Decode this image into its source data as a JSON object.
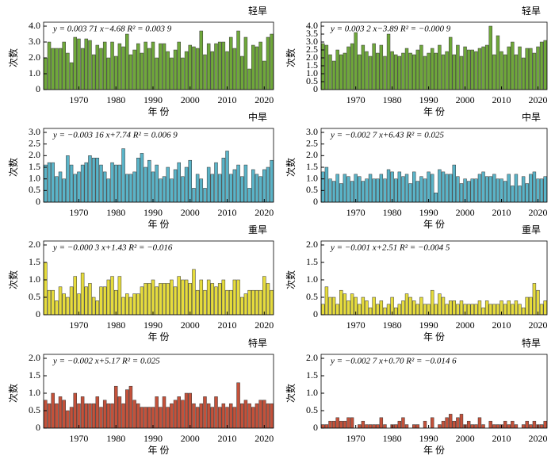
{
  "chart_data": [
    {
      "type": "bar",
      "title": "轻旱",
      "annotation": "y = 0.003 71 x−4.68 R² = 0.003 9",
      "ylabel": "次数",
      "xlabel": "年 份",
      "color": "#6fa83a",
      "x": [
        1961,
        1962,
        1963,
        1964,
        1965,
        1966,
        1967,
        1968,
        1969,
        1970,
        1971,
        1972,
        1973,
        1974,
        1975,
        1976,
        1977,
        1978,
        1979,
        1980,
        1981,
        1982,
        1983,
        1984,
        1985,
        1986,
        1987,
        1988,
        1989,
        1990,
        1991,
        1992,
        1993,
        1994,
        1995,
        1996,
        1997,
        1998,
        1999,
        2000,
        2001,
        2002,
        2003,
        2004,
        2005,
        2006,
        2007,
        2008,
        2009,
        2010,
        2011,
        2012,
        2013,
        2014,
        2015,
        2016,
        2017,
        2018,
        2019,
        2020,
        2021,
        2022
      ],
      "values": [
        2.0,
        3.0,
        2.6,
        2.6,
        2.6,
        3.0,
        2.3,
        1.7,
        3.3,
        3.2,
        2.6,
        3.2,
        3.1,
        2.2,
        2.8,
        2.6,
        3.0,
        2.0,
        3.0,
        2.1,
        2.9,
        2.7,
        3.5,
        2.2,
        2.5,
        2.9,
        2.3,
        3.0,
        2.6,
        3.0,
        2.0,
        2.9,
        2.9,
        2.4,
        2.0,
        2.5,
        3.0,
        2.0,
        2.4,
        2.8,
        2.7,
        2.6,
        3.7,
        2.2,
        2.9,
        2.4,
        2.9,
        3.0,
        3.0,
        2.4,
        3.3,
        2.6,
        3.7,
        2.1,
        3.3,
        1.3,
        2.8,
        2.7,
        3.0,
        1.8,
        3.3,
        3.5
      ],
      "xlim": [
        1960.5,
        2022.5
      ],
      "xticks": [
        1970,
        1980,
        1990,
        2000,
        2010,
        2020
      ],
      "ylim": [
        0,
        4
      ],
      "yticks": [
        0,
        {
          "value": 1,
          "label": "1.0"
        },
        {
          "value": 2,
          "label": "2.0"
        },
        {
          "value": 3,
          "label": "3.0"
        },
        {
          "value": 4,
          "label": "4.0"
        }
      ]
    },
    {
      "type": "bar",
      "title": "轻旱",
      "annotation": "y = 0.003 2 x−3.89 R² = −0.000 9",
      "ylabel": "次数",
      "xlabel": "年 份",
      "color": "#6fa83a",
      "x": [
        1961,
        1962,
        1963,
        1964,
        1965,
        1966,
        1967,
        1968,
        1969,
        1970,
        1971,
        1972,
        1973,
        1974,
        1975,
        1976,
        1977,
        1978,
        1979,
        1980,
        1981,
        1982,
        1983,
        1984,
        1985,
        1986,
        1987,
        1988,
        1989,
        1990,
        1991,
        1992,
        1993,
        1994,
        1995,
        1996,
        1997,
        1998,
        1999,
        2000,
        2001,
        2002,
        2003,
        2004,
        2005,
        2006,
        2007,
        2008,
        2009,
        2010,
        2011,
        2012,
        2013,
        2014,
        2015,
        2016,
        2017,
        2018,
        2019,
        2020,
        2021,
        2022
      ],
      "values": [
        2.9,
        2.8,
        2.2,
        1.8,
        2.5,
        2.2,
        2.3,
        2.7,
        2.9,
        3.6,
        2.2,
        2.8,
        2.4,
        2.1,
        2.9,
        2.3,
        2.8,
        2.1,
        3.5,
        2.4,
        2.2,
        2.1,
        2.3,
        2.6,
        2.3,
        2.2,
        2.5,
        2.8,
        2.1,
        2.3,
        2.6,
        2.3,
        2.8,
        2.2,
        2.4,
        3.3,
        2.2,
        2.8,
        2.1,
        2.7,
        2.5,
        2.5,
        2.4,
        2.6,
        2.7,
        2.8,
        4.0,
        2.2,
        3.4,
        2.4,
        2.2,
        2.7,
        3.0,
        2.2,
        2.7,
        2.0,
        2.6,
        2.6,
        2.3,
        2.7,
        3.0,
        3.1
      ],
      "xlim": [
        1960.5,
        2022.5
      ],
      "xticks": [
        1970,
        1980,
        1990,
        2000,
        2010,
        2020
      ],
      "ylim": [
        0,
        4
      ],
      "yticks": [
        0,
        0.5,
        {
          "value": 1,
          "label": "1.0"
        },
        1.5,
        {
          "value": 2,
          "label": "2.0"
        },
        2.5,
        {
          "value": 3,
          "label": "3.0"
        },
        3.5,
        {
          "value": 4,
          "label": "4.0"
        }
      ]
    },
    {
      "type": "bar",
      "title": "中旱",
      "annotation": "y = −0.003 16 x+7.74 R² = 0.006 9",
      "ylabel": "次数",
      "xlabel": "年 份",
      "color": "#5ab4c8",
      "x": [
        1961,
        1962,
        1963,
        1964,
        1965,
        1966,
        1967,
        1968,
        1969,
        1970,
        1971,
        1972,
        1973,
        1974,
        1975,
        1976,
        1977,
        1978,
        1979,
        1980,
        1981,
        1982,
        1983,
        1984,
        1985,
        1986,
        1987,
        1988,
        1989,
        1990,
        1991,
        1992,
        1993,
        1994,
        1995,
        1996,
        1997,
        1998,
        1999,
        2000,
        2001,
        2002,
        2003,
        2004,
        2005,
        2006,
        2007,
        2008,
        2009,
        2010,
        2011,
        2012,
        2013,
        2014,
        2015,
        2016,
        2017,
        2018,
        2019,
        2020,
        2021,
        2022
      ],
      "values": [
        1.6,
        1.7,
        1.7,
        1.1,
        1.3,
        1.0,
        2.0,
        1.6,
        1.2,
        1.3,
        1.6,
        1.7,
        2.0,
        1.9,
        1.9,
        1.6,
        1.3,
        1.0,
        1.7,
        1.6,
        1.6,
        2.3,
        1.2,
        1.2,
        1.3,
        1.9,
        2.1,
        1.5,
        1.8,
        1.3,
        1.6,
        1.0,
        1.1,
        1.5,
        1.0,
        1.4,
        1.7,
        1.1,
        1.5,
        1.8,
        0.6,
        1.2,
        1.0,
        0.6,
        1.5,
        1.2,
        1.7,
        1.2,
        1.9,
        2.2,
        1.2,
        1.4,
        1.6,
        1.1,
        1.6,
        0.6,
        1.4,
        1.2,
        1.1,
        1.4,
        1.5,
        1.8
      ],
      "xlim": [
        1960.5,
        2022.5
      ],
      "xticks": [
        1970,
        1980,
        1990,
        2000,
        2010,
        2020
      ],
      "ylim": [
        0,
        3
      ],
      "yticks": [
        0,
        0.5,
        {
          "value": 1,
          "label": "1.0"
        },
        1.5,
        {
          "value": 2,
          "label": "2.0"
        },
        2.5,
        {
          "value": 3,
          "label": "3.0"
        }
      ]
    },
    {
      "type": "bar",
      "title": "中旱",
      "annotation": "y = −0.002 7 x+6.43 R² = 0.025",
      "ylabel": "次数",
      "xlabel": "年 份",
      "color": "#5ab4c8",
      "x": [
        1961,
        1962,
        1963,
        1964,
        1965,
        1966,
        1967,
        1968,
        1969,
        1970,
        1971,
        1972,
        1973,
        1974,
        1975,
        1976,
        1977,
        1978,
        1979,
        1980,
        1981,
        1982,
        1983,
        1984,
        1985,
        1986,
        1987,
        1988,
        1989,
        1990,
        1991,
        1992,
        1993,
        1994,
        1995,
        1996,
        1997,
        1998,
        1999,
        2000,
        2001,
        2002,
        2003,
        2004,
        2005,
        2006,
        2007,
        2008,
        2009,
        2010,
        2011,
        2012,
        2013,
        2014,
        2015,
        2016,
        2017,
        2018,
        2019,
        2020,
        2021,
        2022
      ],
      "values": [
        1.3,
        1.5,
        1.0,
        0.9,
        1.2,
        0.8,
        1.2,
        1.1,
        0.9,
        1.2,
        1.1,
        0.9,
        1.0,
        1.2,
        1.0,
        1.0,
        1.2,
        1.0,
        1.4,
        1.3,
        1.0,
        1.3,
        1.1,
        1.2,
        0.8,
        1.3,
        0.9,
        1.1,
        1.0,
        1.3,
        1.2,
        0.4,
        1.4,
        1.3,
        1.2,
        1.2,
        1.6,
        1.1,
        0.8,
        1.0,
        0.9,
        1.0,
        1.0,
        1.2,
        1.3,
        1.1,
        1.1,
        1.2,
        1.0,
        1.0,
        0.9,
        1.2,
        0.7,
        1.2,
        0.7,
        1.1,
        0.8,
        1.2,
        1.3,
        1.0,
        1.0,
        1.1
      ],
      "xlim": [
        1960.5,
        2022.5
      ],
      "xticks": [
        1970,
        1980,
        1990,
        2000,
        2010,
        2020
      ],
      "ylim": [
        0,
        3
      ],
      "yticks": [
        0,
        0.5,
        {
          "value": 1,
          "label": "1.0"
        },
        1.5,
        {
          "value": 2,
          "label": "2.0"
        },
        2.5,
        {
          "value": 3,
          "label": "3.0"
        }
      ]
    },
    {
      "type": "bar",
      "title": "重旱",
      "annotation": "y = −0.000 3 x+1.43 R² = −0.016",
      "ylabel": "次数",
      "xlabel": "年 份",
      "color": "#e6dc3c",
      "x": [
        1961,
        1962,
        1963,
        1964,
        1965,
        1966,
        1967,
        1968,
        1969,
        1970,
        1971,
        1972,
        1973,
        1974,
        1975,
        1976,
        1977,
        1978,
        1979,
        1980,
        1981,
        1982,
        1983,
        1984,
        1985,
        1986,
        1987,
        1988,
        1989,
        1990,
        1991,
        1992,
        1993,
        1994,
        1995,
        1996,
        1997,
        1998,
        1999,
        2000,
        2001,
        2002,
        2003,
        2004,
        2005,
        2006,
        2007,
        2008,
        2009,
        2010,
        2011,
        2012,
        2013,
        2014,
        2015,
        2016,
        2017,
        2018,
        2019,
        2020,
        2021,
        2022
      ],
      "values": [
        1.5,
        0.7,
        0.7,
        0.4,
        0.8,
        0.6,
        0.5,
        0.8,
        1.1,
        0.6,
        1.2,
        0.8,
        0.9,
        0.5,
        0.4,
        0.8,
        0.8,
        1.0,
        1.1,
        0.7,
        1.1,
        0.5,
        0.6,
        0.5,
        0.6,
        0.6,
        0.8,
        0.9,
        0.9,
        1.0,
        0.8,
        0.9,
        0.9,
        0.9,
        1.0,
        0.8,
        1.1,
        1.0,
        1.0,
        0.9,
        1.3,
        0.7,
        1.0,
        0.7,
        1.0,
        0.9,
        0.8,
        0.9,
        1.0,
        0.7,
        0.7,
        1.0,
        1.0,
        0.5,
        0.6,
        0.7,
        0.7,
        0.7,
        0.7,
        1.1,
        0.9,
        0.7
      ],
      "xlim": [
        1960.5,
        2022.5
      ],
      "xticks": [
        1970,
        1980,
        1990,
        2000,
        2010,
        2020
      ],
      "ylim": [
        0,
        2
      ],
      "yticks": [
        0,
        0.5,
        {
          "value": 1,
          "label": "1.0"
        },
        1.5,
        {
          "value": 2,
          "label": "2.0"
        }
      ]
    },
    {
      "type": "bar",
      "title": "重旱",
      "annotation": "y = −0.001 x+2.51 R² = −0.004 5",
      "ylabel": "次数",
      "xlabel": "年 份",
      "color": "#e6dc3c",
      "x": [
        1961,
        1962,
        1963,
        1964,
        1965,
        1966,
        1967,
        1968,
        1969,
        1970,
        1971,
        1972,
        1973,
        1974,
        1975,
        1976,
        1977,
        1978,
        1979,
        1980,
        1981,
        1982,
        1983,
        1984,
        1985,
        1986,
        1987,
        1988,
        1989,
        1990,
        1991,
        1992,
        1993,
        1994,
        1995,
        1996,
        1997,
        1998,
        1999,
        2000,
        2001,
        2002,
        2003,
        2004,
        2005,
        2006,
        2007,
        2008,
        2009,
        2010,
        2011,
        2012,
        2013,
        2014,
        2015,
        2016,
        2017,
        2018,
        2019,
        2020,
        2021,
        2022
      ],
      "values": [
        0.3,
        0.8,
        0.5,
        0.5,
        0.3,
        0.7,
        0.6,
        0.4,
        0.6,
        0.5,
        0.3,
        0.5,
        0.4,
        0.2,
        0.5,
        0.3,
        0.4,
        0.2,
        0.3,
        0.5,
        0.2,
        0.3,
        0.4,
        0.6,
        0.5,
        0.4,
        0.3,
        0.5,
        0.3,
        0.3,
        0.7,
        0.3,
        0.6,
        0.5,
        0.3,
        0.4,
        0.4,
        0.3,
        0.4,
        0.3,
        0.3,
        0.3,
        0.3,
        0.4,
        0.2,
        0.4,
        0.3,
        0.3,
        0.3,
        0.4,
        0.3,
        0.4,
        0.3,
        0.4,
        0.3,
        0.2,
        0.5,
        0.5,
        0.9,
        0.7,
        0.3,
        0.4
      ],
      "xlim": [
        1960.5,
        2022.5
      ],
      "xticks": [
        1970,
        1980,
        1990,
        2000,
        2010,
        2020
      ],
      "ylim": [
        0,
        2
      ],
      "yticks": [
        0,
        0.5,
        {
          "value": 1,
          "label": "1.0"
        },
        1.5,
        {
          "value": 2,
          "label": "2.0"
        }
      ]
    },
    {
      "type": "bar",
      "title": "特旱",
      "annotation": "y = −0.002 x+5.17 R² = 0.025",
      "ylabel": "次数",
      "xlabel": "年 份",
      "color": "#c4513a",
      "x": [
        1961,
        1962,
        1963,
        1964,
        1965,
        1966,
        1967,
        1968,
        1969,
        1970,
        1971,
        1972,
        1973,
        1974,
        1975,
        1976,
        1977,
        1978,
        1979,
        1980,
        1981,
        1982,
        1983,
        1984,
        1985,
        1986,
        1987,
        1988,
        1989,
        1990,
        1991,
        1992,
        1993,
        1994,
        1995,
        1996,
        1997,
        1998,
        1999,
        2000,
        2001,
        2002,
        2003,
        2004,
        2005,
        2006,
        2007,
        2008,
        2009,
        2010,
        2011,
        2012,
        2013,
        2014,
        2015,
        2016,
        2017,
        2018,
        2019,
        2020,
        2021,
        2022
      ],
      "values": [
        0.8,
        0.7,
        1.0,
        0.7,
        0.9,
        0.8,
        0.5,
        0.6,
        1.0,
        0.7,
        0.9,
        0.7,
        0.7,
        0.7,
        0.9,
        0.6,
        0.8,
        0.7,
        0.7,
        1.2,
        0.9,
        0.7,
        1.1,
        1.2,
        0.8,
        0.7,
        0.6,
        0.6,
        0.6,
        0.6,
        0.9,
        0.6,
        0.9,
        0.6,
        0.7,
        0.8,
        0.9,
        0.8,
        1.0,
        1.0,
        0.7,
        0.6,
        0.7,
        0.9,
        0.7,
        0.6,
        0.9,
        0.6,
        0.7,
        0.6,
        0.7,
        0.6,
        1.3,
        0.7,
        0.8,
        0.7,
        0.6,
        0.7,
        0.8,
        0.8,
        0.7,
        0.7
      ],
      "xlim": [
        1960.5,
        2022.5
      ],
      "xticks": [
        1970,
        1980,
        1990,
        2000,
        2010,
        2020
      ],
      "ylim": [
        0,
        2
      ],
      "yticks": [
        0,
        0.5,
        {
          "value": 1,
          "label": "1.0"
        },
        1.5,
        {
          "value": 2,
          "label": "2.0"
        }
      ]
    },
    {
      "type": "bar",
      "title": "特旱",
      "annotation": "y = −0.002 7 x+0.70 R² = −0.014 6",
      "ylabel": "次数",
      "xlabel": "年 份",
      "color": "#c4513a",
      "x": [
        1961,
        1962,
        1963,
        1964,
        1965,
        1966,
        1967,
        1968,
        1969,
        1970,
        1971,
        1972,
        1973,
        1974,
        1975,
        1976,
        1977,
        1978,
        1979,
        1980,
        1981,
        1982,
        1983,
        1984,
        1985,
        1986,
        1987,
        1988,
        1989,
        1990,
        1991,
        1992,
        1993,
        1994,
        1995,
        1996,
        1997,
        1998,
        1999,
        2000,
        2001,
        2002,
        2003,
        2004,
        2005,
        2006,
        2007,
        2008,
        2009,
        2010,
        2011,
        2012,
        2013,
        2014,
        2015,
        2016,
        2017,
        2018,
        2019,
        2020,
        2021,
        2022
      ],
      "values": [
        0.1,
        0.1,
        0.2,
        0.2,
        0.3,
        0.2,
        0.2,
        0.3,
        0.3,
        0.0,
        0.1,
        0.2,
        0.1,
        0.1,
        0.1,
        0.1,
        0.3,
        0.1,
        0.0,
        0.1,
        0.1,
        0.2,
        0.3,
        0.1,
        0.0,
        0.1,
        0.1,
        0.0,
        0.2,
        0.0,
        0.3,
        0.0,
        0.1,
        0.2,
        0.3,
        0.4,
        0.2,
        0.3,
        0.4,
        0.1,
        0.2,
        0.1,
        0.1,
        0.3,
        0.1,
        0.0,
        0.2,
        0.1,
        0.1,
        0.1,
        0.2,
        0.1,
        0.2,
        0.1,
        0.0,
        0.1,
        0.2,
        0.1,
        0.2,
        0.1,
        0.1,
        0.2
      ],
      "xlim": [
        1960.5,
        2022.5
      ],
      "xticks": [
        1970,
        1980,
        1990,
        2000,
        2010,
        2020
      ],
      "ylim": [
        0,
        2
      ],
      "yticks": [
        0,
        0.5,
        {
          "value": 1,
          "label": "1.0"
        },
        1.5,
        {
          "value": 2,
          "label": "2.0"
        }
      ]
    }
  ]
}
